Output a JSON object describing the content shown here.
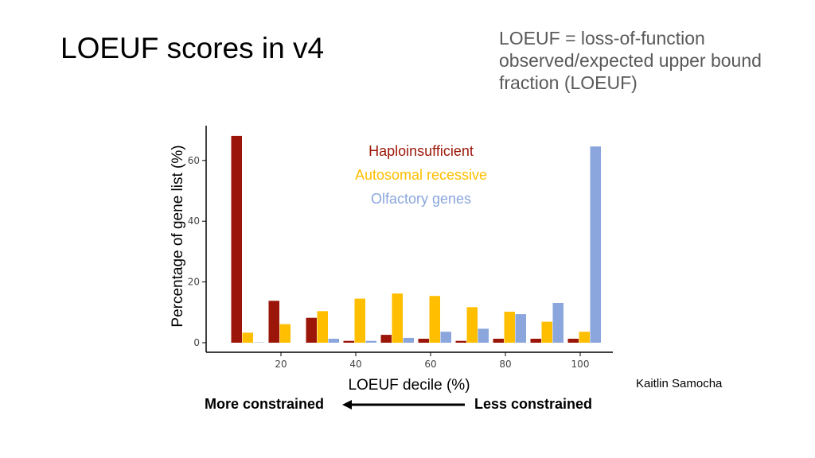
{
  "slide": {
    "title": "LOEUF scores in v4",
    "definition": "LOEUF = loss-of-function observed/expected upper bound fraction (LOEUF)",
    "credit": "Kaitlin Samocha",
    "direction": {
      "left_label": "More constrained",
      "right_label": "Less constrained"
    }
  },
  "chart_data": {
    "type": "bar",
    "xlabel": "LOEUF decile (%)",
    "ylabel": "Percentage of gene list (%)",
    "xlim": [
      0,
      108
    ],
    "ylim": [
      0,
      68
    ],
    "xticks": [
      20,
      40,
      60,
      80,
      100
    ],
    "yticks": [
      0,
      20,
      40,
      60
    ],
    "grid": false,
    "legend_position": "top-center",
    "categories": [
      10,
      20,
      30,
      40,
      50,
      60,
      70,
      80,
      90,
      100
    ],
    "series": [
      {
        "name": "Haploinsufficient",
        "color": "#9b1608",
        "values": [
          68.1,
          13.8,
          8.2,
          0.6,
          2.6,
          1.3,
          0.6,
          1.3,
          1.3,
          1.3
        ]
      },
      {
        "name": "Autosomal recessive",
        "color": "#ffbe00",
        "values": [
          3.3,
          6.1,
          10.4,
          14.5,
          16.2,
          15.4,
          11.7,
          10.2,
          6.9,
          3.6
        ]
      },
      {
        "name": "Olfactory genes",
        "color": "#8aa6dc",
        "values": [
          0.1,
          0.0,
          1.3,
          0.6,
          1.6,
          3.6,
          4.6,
          9.4,
          13.1,
          64.6
        ]
      }
    ]
  }
}
